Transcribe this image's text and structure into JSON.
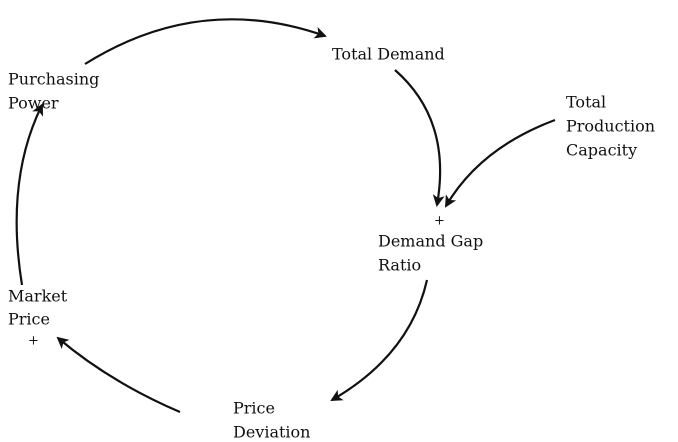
{
  "nodes": [
    {
      "lines": [
        "Total Demand"
      ]
    },
    {
      "lines": [
        "Purchasing",
        "Power"
      ]
    },
    {
      "lines": [
        "Total",
        "Production",
        "Capacity"
      ]
    },
    {
      "lines": [
        "Demand Gap",
        "Ratio"
      ]
    },
    {
      "lines": [
        "Market",
        "Price"
      ]
    },
    {
      "lines": [
        "Price",
        "Deviation"
      ]
    }
  ],
  "polarities": [
    "+",
    "+"
  ]
}
